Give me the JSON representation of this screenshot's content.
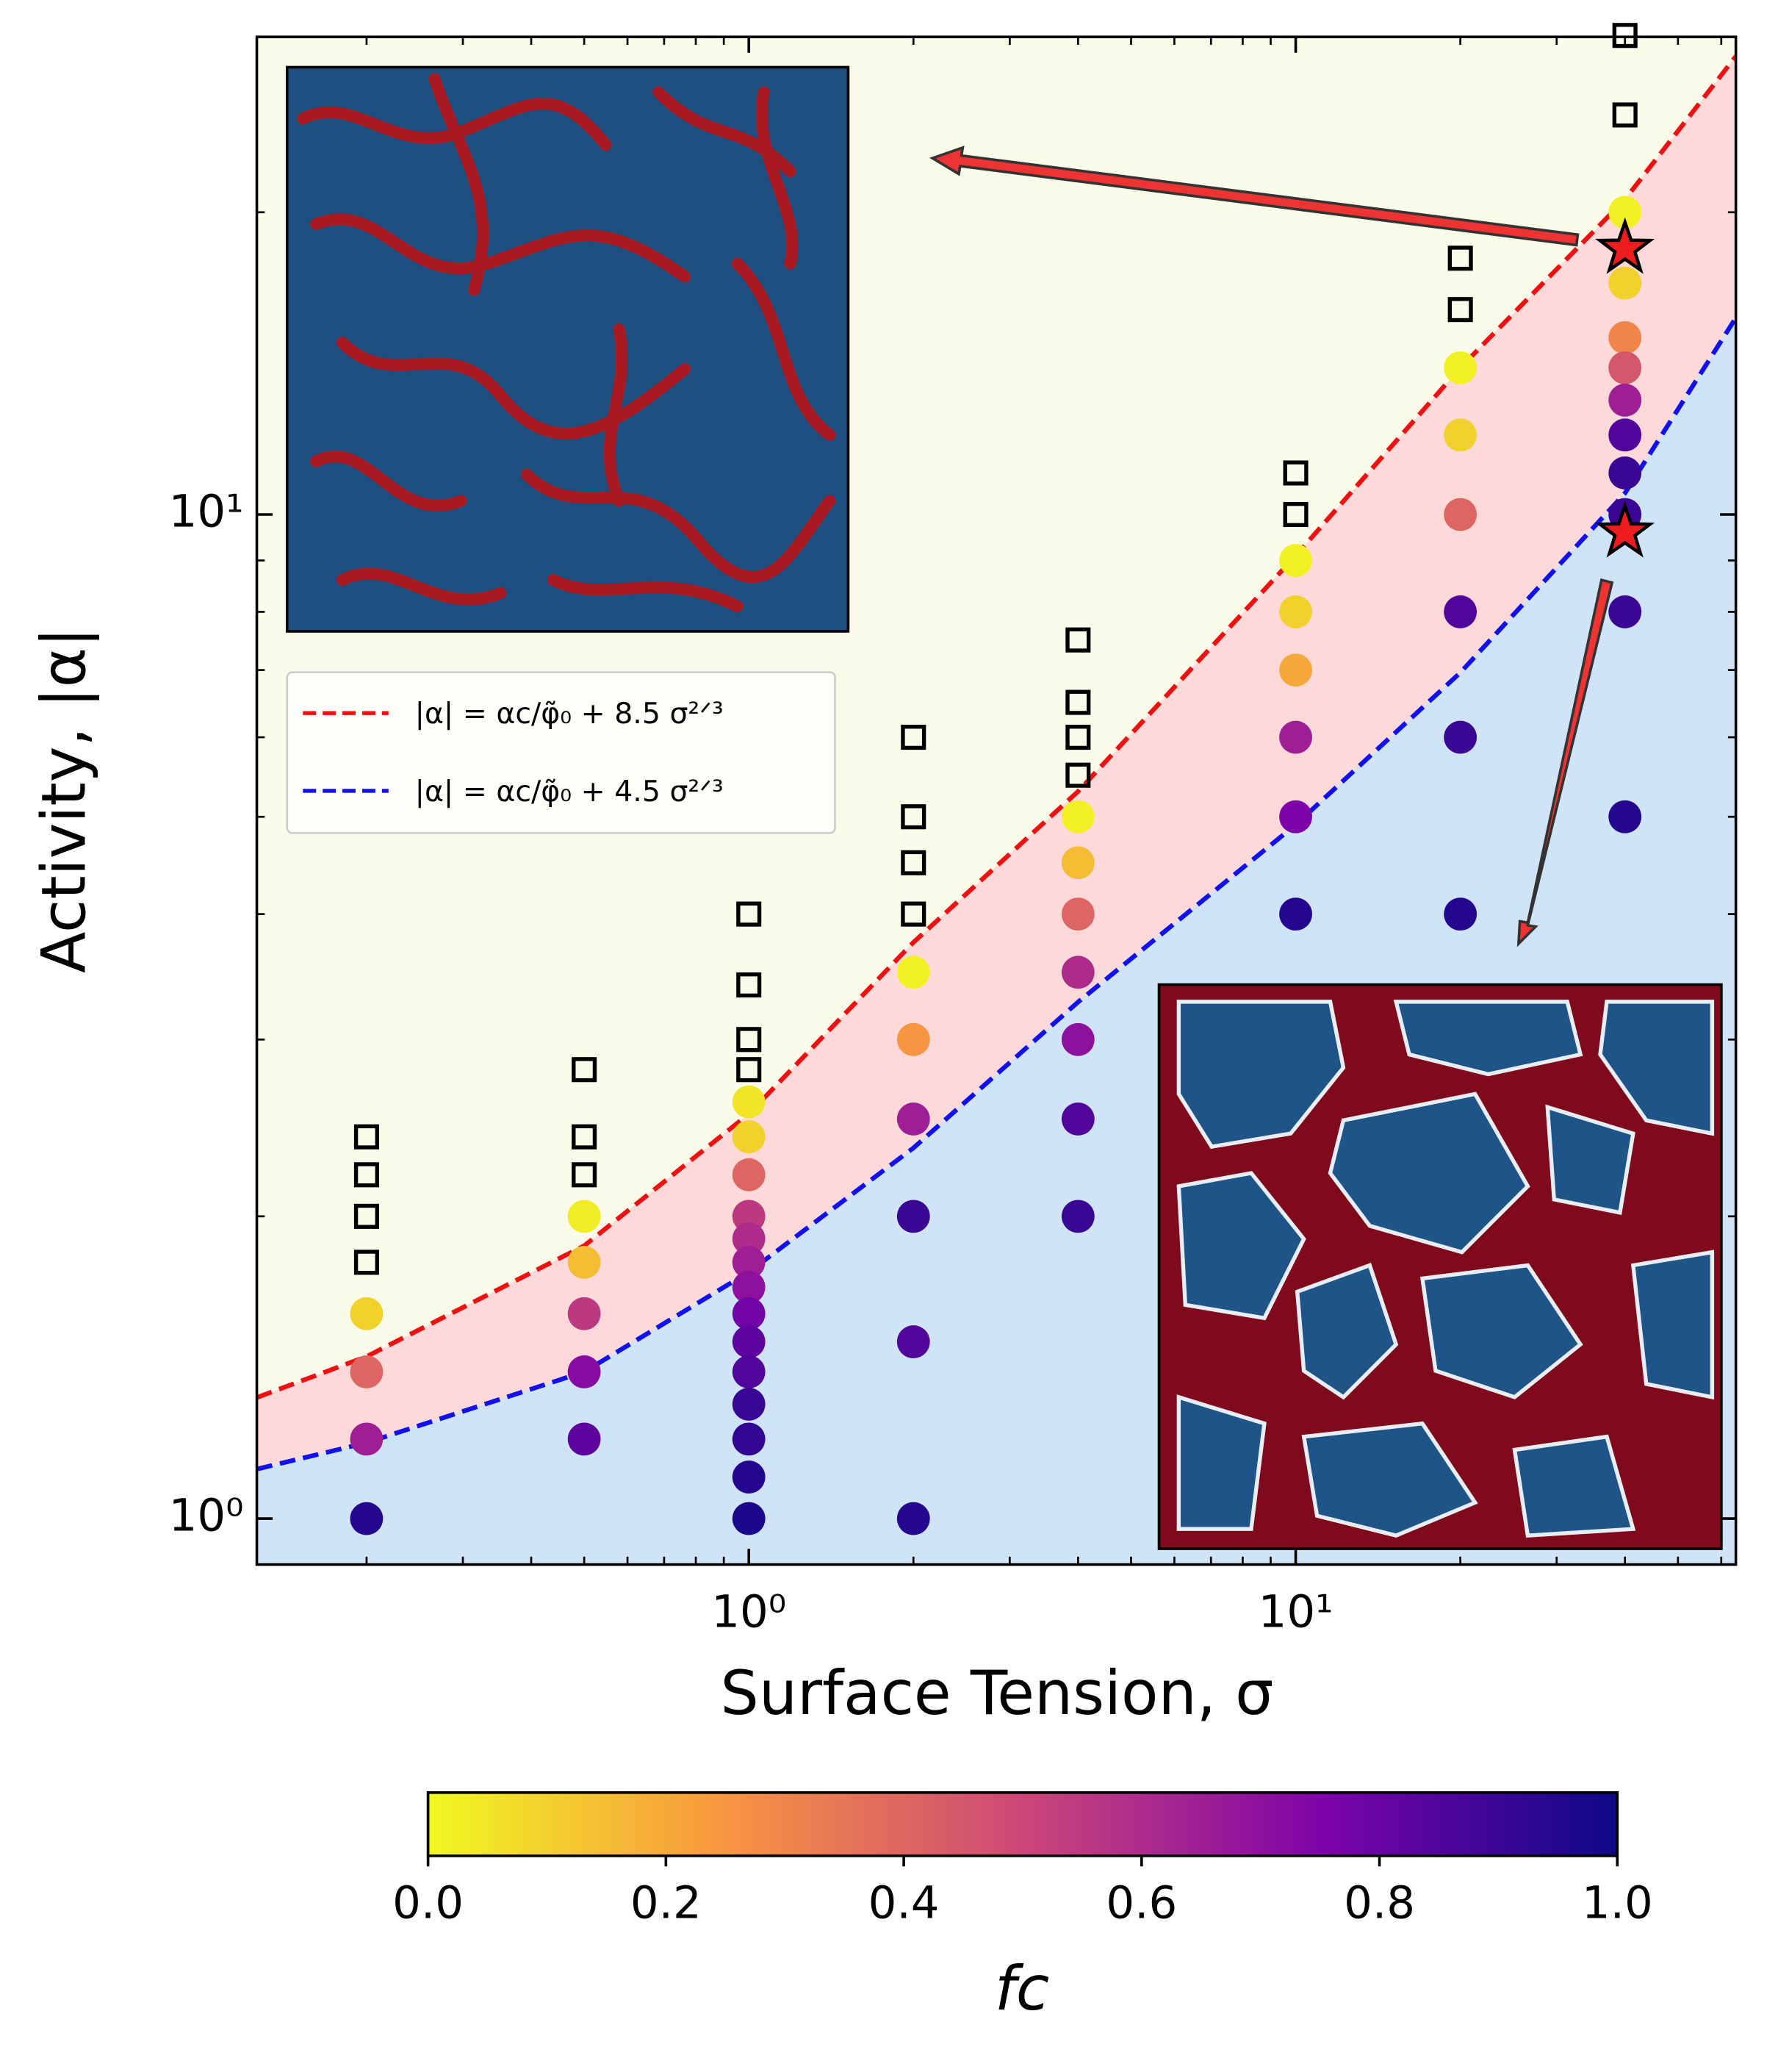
{
  "chart_data": {
    "type": "scatter",
    "x_label": "Surface Tension, σ",
    "y_label": "Activity, |α|",
    "xscale": "log",
    "yscale": "log",
    "xlim": [
      0.126,
      63.8
    ],
    "ylim": [
      0.9,
      29.9
    ],
    "xticks": [
      {
        "value": 1,
        "label": "10⁰"
      },
      {
        "value": 10,
        "label": "10¹"
      }
    ],
    "yticks": [
      {
        "value": 1,
        "label": "10⁰"
      },
      {
        "value": 10,
        "label": "10¹"
      }
    ],
    "xminorticks": [
      0.2,
      0.3,
      0.4,
      0.5,
      0.6,
      0.7,
      0.8,
      0.9,
      2,
      3,
      4,
      5,
      6,
      7,
      8,
      9,
      20,
      30,
      40,
      50,
      60
    ],
    "yminorticks": [
      2,
      3,
      4,
      5,
      6,
      7,
      8,
      9,
      20
    ],
    "colormap": "plasma_r",
    "points": {
      "sigma": [
        0.2,
        0.2,
        0.2,
        0.2,
        0.5,
        0.5,
        0.5,
        0.5,
        0.5,
        1,
        1,
        1,
        1,
        1,
        1,
        1,
        1,
        1,
        1,
        1,
        1,
        1,
        1,
        2,
        2,
        2,
        2,
        2,
        2,
        4,
        4,
        4,
        4,
        4,
        4,
        4,
        10,
        10,
        10,
        10,
        10,
        10,
        20,
        20,
        20,
        20,
        20,
        20,
        40,
        40,
        40,
        40,
        40,
        40,
        40,
        40,
        40,
        40
      ],
      "alpha": [
        1.6,
        1.4,
        1.2,
        1.0,
        2.0,
        1.8,
        1.6,
        1.4,
        1.2,
        2.6,
        2.4,
        2.2,
        2.0,
        1.9,
        1.8,
        1.7,
        1.6,
        1.5,
        1.4,
        1.3,
        1.2,
        1.1,
        1.0,
        3.5,
        3.0,
        2.5,
        2.0,
        1.5,
        1.0,
        5.0,
        4.5,
        4.0,
        3.5,
        3.0,
        2.5,
        2.0,
        9,
        8,
        7,
        6,
        5,
        4,
        14,
        12,
        10,
        8,
        6,
        4,
        20,
        17,
        15,
        14,
        13,
        12,
        11,
        10,
        8,
        5
      ],
      "f_c": [
        0.1,
        0.4,
        0.65,
        0.95,
        0.03,
        0.15,
        0.55,
        0.72,
        0.82,
        0.05,
        0.1,
        0.4,
        0.55,
        0.6,
        0.65,
        0.7,
        0.78,
        0.82,
        0.85,
        0.9,
        0.92,
        0.95,
        0.97,
        0.02,
        0.25,
        0.65,
        0.9,
        0.85,
        0.95,
        0.02,
        0.15,
        0.4,
        0.6,
        0.7,
        0.85,
        0.9,
        0.02,
        0.1,
        0.2,
        0.65,
        0.75,
        0.95,
        0.02,
        0.1,
        0.4,
        0.85,
        0.9,
        0.95,
        0.02,
        0.1,
        0.3,
        0.45,
        0.65,
        0.85,
        0.9,
        0.9,
        0.9,
        0.95
      ]
    },
    "squares": {
      "sigma": [
        0.2,
        0.2,
        0.2,
        0.2,
        0.5,
        0.5,
        0.5,
        1,
        1,
        1,
        1,
        2,
        2,
        2,
        2,
        4,
        4,
        4,
        4,
        10,
        10,
        20,
        20,
        40,
        40
      ],
      "alpha": [
        1.8,
        2.0,
        2.2,
        2.4,
        2.2,
        2.4,
        2.8,
        2.8,
        3.0,
        3.4,
        4.0,
        4.0,
        4.5,
        5.0,
        6.0,
        5.5,
        6.0,
        6.5,
        7.5,
        10,
        11,
        16,
        18,
        25,
        30
      ]
    },
    "stars": {
      "sigma": [
        40,
        40
      ],
      "alpha": [
        18.4,
        9.6
      ],
      "color": "#ee1c1c"
    },
    "curves": [
      {
        "label": "|α| = αc/φ̃₀ + 8.5 σ²ᐟ³",
        "color": "#ee1111",
        "fill": "#fdd9d9",
        "x": [
          0.126,
          0.2,
          0.5,
          1,
          2,
          4,
          10,
          20,
          40,
          63.8
        ],
        "y": [
          1.32,
          1.45,
          1.87,
          2.53,
          3.75,
          5.3,
          9.1,
          14,
          20.6,
          28.6
        ]
      },
      {
        "label": "|α| = αc/φ̃₀ + 4.5 σ²ᐟ³",
        "color": "#1111ee",
        "fill": "#d0e4f8",
        "x": [
          0.126,
          0.2,
          0.5,
          1,
          2,
          4,
          10,
          20,
          40,
          63.8
        ],
        "y": [
          1.12,
          1.19,
          1.4,
          1.76,
          2.34,
          3.27,
          4.91,
          6.96,
          10.5,
          15.7
        ]
      }
    ],
    "background": "#fbfbe9",
    "colorbar": {
      "label": "fc",
      "lim": [
        0,
        1
      ],
      "ticks": [
        {
          "value": 0,
          "label": "0.0"
        },
        {
          "value": 0.2,
          "label": "0.2"
        },
        {
          "value": 0.4,
          "label": "0.4"
        },
        {
          "value": 0.6,
          "label": "0.6"
        },
        {
          "value": 0.8,
          "label": "0.8"
        },
        {
          "value": 1,
          "label": "1.0"
        }
      ]
    }
  }
}
